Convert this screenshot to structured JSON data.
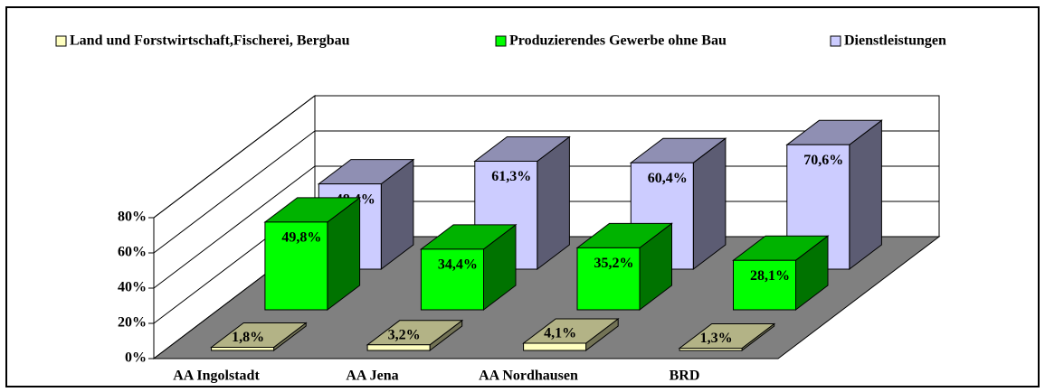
{
  "chart_data": {
    "type": "bar3d",
    "categories": [
      "AA Ingolstadt",
      "AA Jena",
      "AA Nordhausen",
      "BRD"
    ],
    "series": [
      {
        "name": "Land und Forstwirtschaft,Fischerei, Bergbau",
        "color": "#ffffc0",
        "values": [
          1.8,
          3.2,
          4.1,
          1.3
        ],
        "value_labels": [
          "1,8%",
          "3,2%",
          "4,1%",
          "1,3%"
        ]
      },
      {
        "name": "Produzierendes Gewerbe ohne Bau",
        "color": "#00ff00",
        "values": [
          49.8,
          34.4,
          35.2,
          28.1
        ],
        "value_labels": [
          "49,8%",
          "34,4%",
          "35,2%",
          "28,1%"
        ]
      },
      {
        "name": "Dienstleistungen",
        "color": "#ccccff",
        "values": [
          48.4,
          61.3,
          60.4,
          70.6
        ],
        "value_labels": [
          "48,4%",
          "61,3%",
          "60,4%",
          "70,6%"
        ]
      }
    ],
    "ylim": [
      0,
      80
    ],
    "yticks": [
      {
        "value": 0,
        "label": "0%"
      },
      {
        "value": 20,
        "label": "20%"
      },
      {
        "value": 40,
        "label": "40%"
      },
      {
        "value": 60,
        "label": "60%"
      },
      {
        "value": 80,
        "label": "80%"
      }
    ],
    "grid": true,
    "legend": "top"
  }
}
